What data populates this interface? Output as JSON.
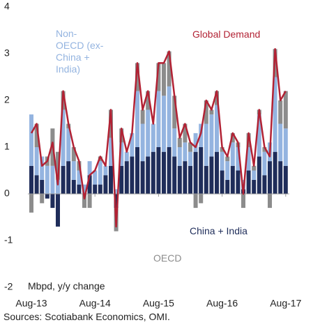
{
  "chart_data": {
    "type": "stacked_bar_line",
    "categories": [
      "Aug-13",
      null,
      null,
      null,
      null,
      null,
      null,
      null,
      null,
      null,
      null,
      null,
      "Aug-14",
      null,
      null,
      null,
      null,
      null,
      null,
      null,
      null,
      null,
      null,
      null,
      "Aug-15",
      null,
      null,
      null,
      null,
      null,
      null,
      null,
      null,
      null,
      null,
      null,
      "Aug-16",
      null,
      null,
      null,
      null,
      null,
      null,
      null,
      null,
      null,
      null,
      null,
      "Aug-17"
    ],
    "series": [
      {
        "name": "China + India",
        "color": "#1f2d5a",
        "kind": "bar",
        "values": [
          0.6,
          0.4,
          0.3,
          -0.1,
          -0.3,
          -0.7,
          0.6,
          0.7,
          0.3,
          0.2,
          0.0,
          0.4,
          0.2,
          0.2,
          0.4,
          0.6,
          -0.3,
          0.6,
          0.7,
          0.8,
          1.0,
          0.7,
          0.8,
          0.9,
          1.0,
          0.9,
          1.0,
          0.8,
          0.6,
          0.7,
          0.6,
          0.9,
          1.0,
          0.6,
          0.8,
          0.9,
          0.5,
          0.3,
          0.6,
          0.5,
          0.1,
          0.5,
          0.3,
          0.8,
          0.4,
          0.7,
          0.9,
          0.7,
          0.6
        ]
      },
      {
        "name": "Non-OECD (ex-China + India)",
        "color": "#94b4e0",
        "kind": "bar",
        "values": [
          1.1,
          0.6,
          0.5,
          0.6,
          0.6,
          0.3,
          1.2,
          0.7,
          0.4,
          0.3,
          0.2,
          0.3,
          0.3,
          0.5,
          0.2,
          0.6,
          0.1,
          0.5,
          0.2,
          0.5,
          1.2,
          0.8,
          1.0,
          0.6,
          1.2,
          1.2,
          1.3,
          0.6,
          0.4,
          0.4,
          0.3,
          0.4,
          0.5,
          0.9,
          0.9,
          1.0,
          0.4,
          0.4,
          0.5,
          0.5,
          0.2,
          0.5,
          0.2,
          0.9,
          0.5,
          0.4,
          1.6,
          0.8,
          0.8
        ]
      },
      {
        "name": "OECD",
        "color": "#8c8c8c",
        "kind": "bar",
        "values": [
          -0.4,
          0.5,
          -0.2,
          0.2,
          0.8,
          0.6,
          0.4,
          0.1,
          0.3,
          0.2,
          -0.3,
          -0.3,
          0,
          0.1,
          0,
          0.6,
          -0.5,
          0.3,
          0,
          0,
          0.6,
          0.3,
          0.4,
          0,
          0.6,
          0.7,
          0.75,
          0.7,
          0.2,
          0.4,
          0.2,
          -0.3,
          -0.2,
          0.5,
          0.1,
          0.3,
          0.1,
          0.1,
          0.2,
          0.1,
          -0.3,
          0.3,
          0.1,
          0.1,
          0.1,
          -0.3,
          0.6,
          0.5,
          0.8
        ]
      },
      {
        "name": "Global Demand",
        "color": "#b22234",
        "kind": "line",
        "values": [
          1.3,
          1.5,
          0.6,
          0.7,
          1.1,
          0.2,
          2.2,
          1.5,
          1.0,
          0.7,
          -0.1,
          0.4,
          0.5,
          0.8,
          0.6,
          1.8,
          -0.7,
          1.4,
          0.9,
          1.3,
          2.8,
          1.8,
          2.2,
          1.5,
          2.8,
          2.8,
          3.05,
          2.1,
          1.2,
          1.5,
          1.1,
          1.0,
          1.3,
          2.0,
          1.8,
          2.2,
          1.0,
          0.8,
          1.3,
          1.1,
          0.0,
          1.3,
          0.6,
          1.8,
          1.0,
          0.8,
          3.1,
          2.0,
          2.2
        ]
      }
    ],
    "ylim": [
      -2,
      4
    ],
    "yticks": [
      -2,
      -1,
      0,
      1,
      2,
      3,
      4
    ],
    "y_axis_label": "Mbpd, y/y change",
    "source": "Sources: Scotiabank Economics, OMI."
  }
}
